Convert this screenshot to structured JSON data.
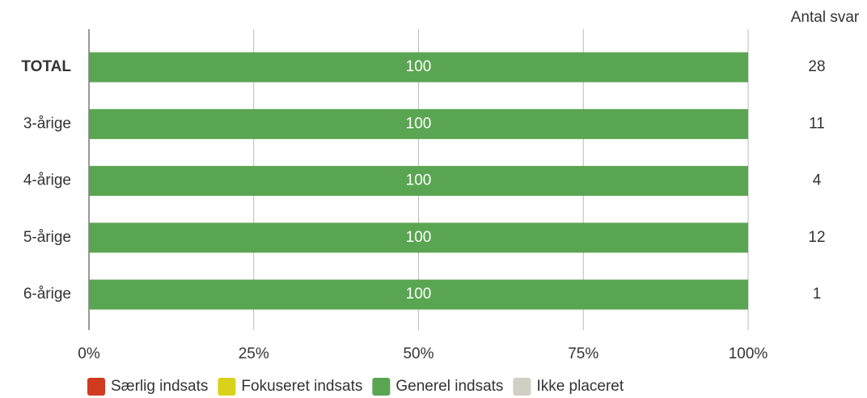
{
  "chart_data": {
    "type": "stacked_bar_horizontal",
    "categories": [
      "TOTAL",
      "3-årige",
      "4-årige",
      "5-årige",
      "6-årige"
    ],
    "series": [
      {
        "name": "Særlig indsats",
        "color": "#d03a1e",
        "values": [
          0,
          0,
          0,
          0,
          0
        ]
      },
      {
        "name": "Fokuseret indsats",
        "color": "#d9d21a",
        "values": [
          0,
          0,
          0,
          0,
          0
        ]
      },
      {
        "name": "Generel indsats",
        "color": "#5aa551",
        "values": [
          100,
          100,
          100,
          100,
          100
        ]
      },
      {
        "name": "Ikke placeret",
        "color": "#d0cfc4",
        "values": [
          0,
          0,
          0,
          0,
          0
        ]
      }
    ],
    "xlim": [
      0,
      100
    ],
    "xticks": [
      {
        "value": 0,
        "label": "0%"
      },
      {
        "value": 25,
        "label": "25%"
      },
      {
        "value": 50,
        "label": "50%"
      },
      {
        "value": 75,
        "label": "75%"
      },
      {
        "value": 100,
        "label": "100%"
      }
    ],
    "grid": true,
    "legend": "bottom",
    "count_header": "Antal svar",
    "counts": [
      28,
      11,
      4,
      12,
      1
    ]
  }
}
